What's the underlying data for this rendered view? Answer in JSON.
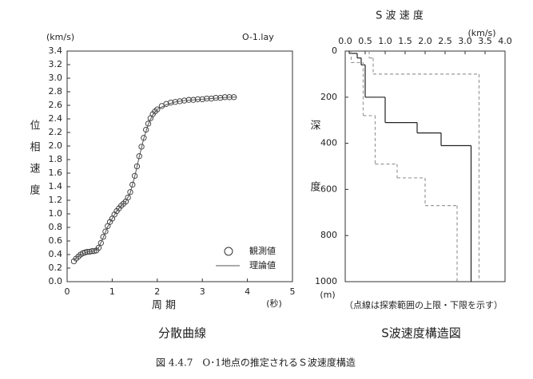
{
  "figure_caption": "図 4.4.7　O･1地点の推定されるＳ波速度構造",
  "chart_data": [
    {
      "type": "dispersion",
      "title": "分散曲線",
      "file_label": "O-1.lay",
      "y_unit": "(km/s)",
      "y_label": "位相速度",
      "x_label": "周 期",
      "x_unit": "(秒)",
      "xlim": [
        0,
        5
      ],
      "xticks": [
        0,
        1,
        2,
        3,
        4,
        5
      ],
      "ylim": [
        0,
        3.4
      ],
      "yticks": [
        {
          "value": 0,
          "label": "0.0"
        },
        0.2,
        0.4,
        0.6,
        0.8,
        {
          "value": 1,
          "label": "1.0"
        },
        1.2,
        1.4,
        1.6,
        1.8,
        {
          "value": 2,
          "label": "2.0"
        },
        2.2,
        2.4,
        2.6,
        2.8,
        {
          "value": 3,
          "label": "3.0"
        },
        3.2,
        3.4
      ],
      "legend": "lower right",
      "series": [
        {
          "name": "観測値",
          "mark": "circle",
          "color": "#333333",
          "x": [
            0.15,
            0.2,
            0.25,
            0.3,
            0.35,
            0.4,
            0.45,
            0.5,
            0.55,
            0.6,
            0.65,
            0.7,
            0.75,
            0.8,
            0.85,
            0.9,
            0.95,
            1.0,
            1.05,
            1.1,
            1.15,
            1.2,
            1.25,
            1.3,
            1.35,
            1.4,
            1.45,
            1.5,
            1.55,
            1.6,
            1.65,
            1.7,
            1.75,
            1.8,
            1.85,
            1.9,
            1.95,
            2.0,
            2.1,
            2.2,
            2.3,
            2.4,
            2.5,
            2.6,
            2.7,
            2.8,
            2.9,
            3.0,
            3.1,
            3.2,
            3.3,
            3.4,
            3.5,
            3.6,
            3.7
          ],
          "values": [
            0.3,
            0.34,
            0.37,
            0.4,
            0.42,
            0.43,
            0.44,
            0.44,
            0.45,
            0.45,
            0.46,
            0.5,
            0.57,
            0.66,
            0.74,
            0.82,
            0.88,
            0.93,
            0.99,
            1.04,
            1.08,
            1.12,
            1.15,
            1.18,
            1.24,
            1.32,
            1.43,
            1.56,
            1.7,
            1.85,
            1.99,
            2.12,
            2.24,
            2.33,
            2.41,
            2.47,
            2.51,
            2.54,
            2.59,
            2.62,
            2.64,
            2.65,
            2.66,
            2.67,
            2.68,
            2.68,
            2.69,
            2.69,
            2.7,
            2.7,
            2.71,
            2.71,
            2.72,
            2.72,
            2.72
          ]
        },
        {
          "name": "理論値",
          "mark": "line",
          "color": "#555555",
          "x": [
            0.15,
            0.3,
            0.45,
            0.6,
            0.7,
            0.8,
            0.9,
            1.0,
            1.1,
            1.2,
            1.3,
            1.4,
            1.5,
            1.6,
            1.7,
            1.8,
            1.9,
            2.0,
            2.2,
            2.4,
            2.6,
            2.8,
            3.0,
            3.2,
            3.4,
            3.6,
            3.75
          ],
          "values": [
            0.32,
            0.4,
            0.44,
            0.45,
            0.5,
            0.65,
            0.81,
            0.93,
            1.04,
            1.12,
            1.18,
            1.31,
            1.55,
            1.84,
            2.11,
            2.32,
            2.46,
            2.54,
            2.61,
            2.65,
            2.67,
            2.68,
            2.69,
            2.7,
            2.71,
            2.72,
            2.72
          ]
        }
      ]
    },
    {
      "type": "step",
      "title": "S波速度構造図",
      "x_label": "S 波 速 度",
      "x_unit": "(km/s)",
      "y_label": "深 度",
      "y_unit": "(m)",
      "note": "（点線は探索範囲の上限・下限を示す）",
      "xlim": [
        0,
        4
      ],
      "xticks": [
        {
          "value": 0,
          "label": "0.0"
        },
        0.5,
        {
          "value": 1,
          "label": "1.0"
        },
        1.5,
        {
          "value": 2,
          "label": "2.0"
        },
        2.5,
        {
          "value": 3,
          "label": "3.0"
        },
        3.5,
        {
          "value": 4,
          "label": "4.0"
        }
      ],
      "ylim": [
        0,
        1000
      ],
      "yticks": [
        0,
        200,
        400,
        600,
        800,
        1000
      ],
      "y_inverted": true,
      "series": [
        {
          "style": "solid",
          "color": "#222222",
          "depth": [
            0,
            10,
            30,
            60,
            200,
            310,
            355,
            410
          ],
          "values": [
            0.1,
            0.3,
            0.4,
            0.5,
            1.0,
            1.8,
            2.4,
            3.15
          ]
        },
        {
          "style": "dashed",
          "color": "#999999",
          "depth": [
            0,
            30,
            100
          ],
          "values": [
            0.6,
            0.7,
            3.35
          ]
        },
        {
          "style": "dashed",
          "color": "#999999",
          "depth": [
            0,
            50,
            280,
            490,
            550,
            670
          ],
          "values": [
            0.15,
            0.45,
            0.75,
            1.3,
            2.0,
            2.8
          ]
        }
      ]
    }
  ]
}
